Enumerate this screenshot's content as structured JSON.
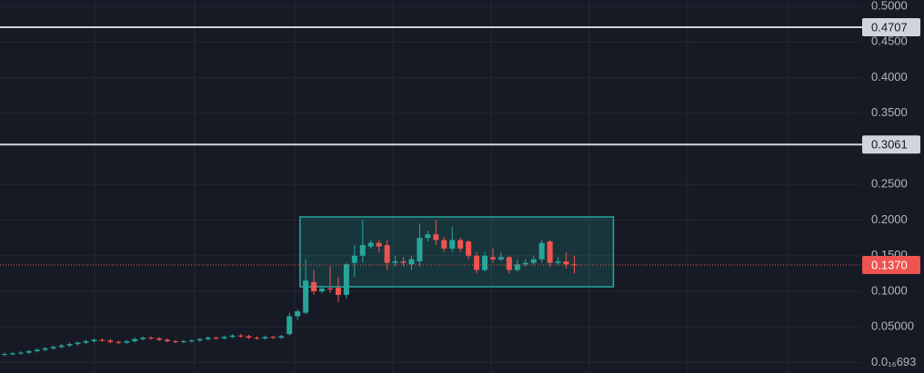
{
  "chart_data": {
    "type": "candlestick",
    "open": [
      0.011,
      0.012,
      0.013,
      0.014,
      0.016,
      0.018,
      0.02,
      0.022,
      0.024,
      0.026,
      0.028,
      0.03,
      0.032,
      0.031,
      0.029,
      0.028,
      0.03,
      0.033,
      0.035,
      0.034,
      0.032,
      0.03,
      0.029,
      0.03,
      0.031,
      0.033,
      0.035,
      0.034,
      0.036,
      0.038,
      0.037,
      0.035,
      0.034,
      0.036,
      0.035,
      0.04,
      0.065,
      0.07,
      0.113,
      0.1,
      0.104,
      0.105,
      0.095,
      0.14,
      0.15,
      0.163,
      0.168,
      0.165,
      0.14,
      0.142,
      0.138,
      0.142,
      0.175,
      0.18,
      0.172,
      0.16,
      0.172,
      0.17,
      0.15,
      0.13,
      0.148,
      0.145,
      0.148,
      0.13,
      0.138,
      0.14,
      0.145,
      0.17,
      0.14,
      0.142,
      0.138
    ],
    "high": [
      0.014,
      0.015,
      0.016,
      0.018,
      0.02,
      0.022,
      0.024,
      0.026,
      0.028,
      0.03,
      0.032,
      0.034,
      0.034,
      0.033,
      0.031,
      0.032,
      0.035,
      0.037,
      0.037,
      0.036,
      0.034,
      0.032,
      0.032,
      0.033,
      0.035,
      0.037,
      0.037,
      0.038,
      0.04,
      0.04,
      0.039,
      0.037,
      0.038,
      0.038,
      0.039,
      0.07,
      0.075,
      0.145,
      0.13,
      0.108,
      0.135,
      0.12,
      0.14,
      0.165,
      0.2,
      0.172,
      0.172,
      0.172,
      0.15,
      0.148,
      0.15,
      0.195,
      0.185,
      0.2,
      0.176,
      0.19,
      0.175,
      0.172,
      0.155,
      0.155,
      0.16,
      0.155,
      0.15,
      0.145,
      0.145,
      0.15,
      0.172,
      0.172,
      0.148,
      0.155,
      0.15
    ],
    "low": [
      0.009,
      0.01,
      0.011,
      0.012,
      0.014,
      0.016,
      0.018,
      0.02,
      0.022,
      0.024,
      0.026,
      0.028,
      0.029,
      0.027,
      0.026,
      0.026,
      0.028,
      0.031,
      0.032,
      0.03,
      0.028,
      0.027,
      0.027,
      0.028,
      0.029,
      0.031,
      0.032,
      0.032,
      0.034,
      0.035,
      0.033,
      0.032,
      0.032,
      0.033,
      0.033,
      0.038,
      0.06,
      0.068,
      0.095,
      0.097,
      0.098,
      0.085,
      0.09,
      0.12,
      0.14,
      0.16,
      0.155,
      0.13,
      0.135,
      0.135,
      0.13,
      0.135,
      0.17,
      0.165,
      0.155,
      0.155,
      0.155,
      0.145,
      0.125,
      0.128,
      0.14,
      0.142,
      0.125,
      0.128,
      0.135,
      0.138,
      0.14,
      0.135,
      0.138,
      0.132,
      0.125
    ],
    "close": [
      0.012,
      0.013,
      0.014,
      0.016,
      0.018,
      0.02,
      0.022,
      0.024,
      0.026,
      0.028,
      0.03,
      0.032,
      0.031,
      0.029,
      0.028,
      0.03,
      0.033,
      0.035,
      0.034,
      0.032,
      0.03,
      0.029,
      0.03,
      0.031,
      0.033,
      0.035,
      0.034,
      0.036,
      0.038,
      0.037,
      0.035,
      0.034,
      0.036,
      0.035,
      0.037,
      0.065,
      0.072,
      0.115,
      0.1,
      0.104,
      0.103,
      0.095,
      0.138,
      0.15,
      0.165,
      0.168,
      0.163,
      0.14,
      0.142,
      0.14,
      0.145,
      0.175,
      0.18,
      0.172,
      0.16,
      0.172,
      0.16,
      0.15,
      0.13,
      0.15,
      0.145,
      0.148,
      0.13,
      0.138,
      0.14,
      0.145,
      0.168,
      0.14,
      0.142,
      0.138,
      0.137
    ],
    "up_color": "#26a69a",
    "down_color": "#ef5350",
    "ylim": [
      -0.0146,
      0.5089
    ],
    "yticks": [
      {
        "value": 6.93e-17,
        "label": "0.0₁₆693"
      },
      {
        "value": 0.05,
        "label": "0.05000"
      },
      {
        "value": 0.1,
        "label": "0.1000"
      },
      {
        "value": 0.15,
        "label": "0.1500"
      },
      {
        "value": 0.2,
        "label": "0.2000"
      },
      {
        "value": 0.25,
        "label": "0.2500"
      },
      {
        "value": 0.35,
        "label": "0.3500"
      },
      {
        "value": 0.4,
        "label": "0.4000"
      },
      {
        "value": 0.45,
        "label": "0.4500"
      },
      {
        "value": 0.5,
        "label": "0.5000"
      }
    ],
    "grid": true,
    "levels": [
      0.4707,
      0.3061
    ],
    "last_price": {
      "value": 0.137,
      "value_label": "0.1370",
      "color": "#ef5350"
    },
    "box": {
      "x": [
        36.3,
        74.8
      ],
      "y": [
        0.1064,
        0.2045
      ],
      "color": "#26a69a"
    }
  }
}
